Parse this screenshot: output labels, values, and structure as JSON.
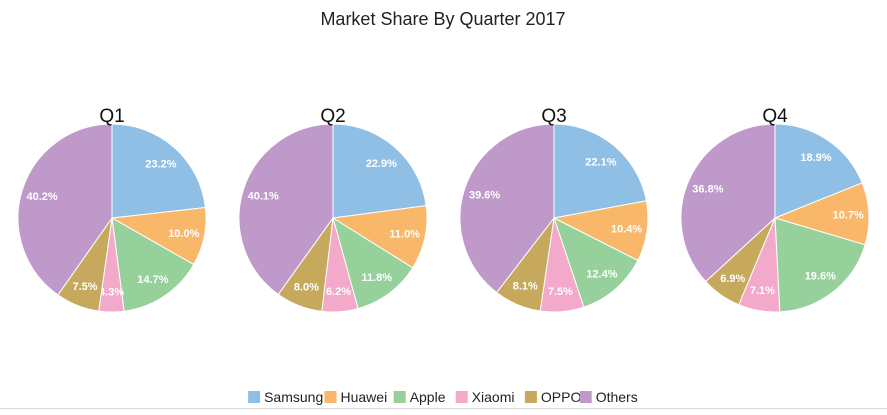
{
  "chart_data": {
    "type": "pie",
    "title": "Market Share By Quarter 2017",
    "categories": [
      "Samsung",
      "Huawei",
      "Apple",
      "Xiaomi",
      "OPPO",
      "Others"
    ],
    "colors": [
      "#8fbfe5",
      "#f9b76a",
      "#96d19c",
      "#f3a9c9",
      "#c6a95c",
      "#bf99c9"
    ],
    "legend_position": "bottom",
    "label_suffix": "%",
    "pies": [
      {
        "name": "Q1",
        "values": [
          23.2,
          10.0,
          14.7,
          4.3,
          7.5,
          40.2
        ]
      },
      {
        "name": "Q2",
        "values": [
          22.9,
          11.0,
          11.8,
          6.2,
          8.0,
          40.1
        ]
      },
      {
        "name": "Q3",
        "values": [
          22.1,
          10.4,
          12.4,
          7.5,
          8.1,
          39.6
        ]
      },
      {
        "name": "Q4",
        "values": [
          18.9,
          10.7,
          19.6,
          7.1,
          6.9,
          36.8
        ]
      }
    ]
  }
}
